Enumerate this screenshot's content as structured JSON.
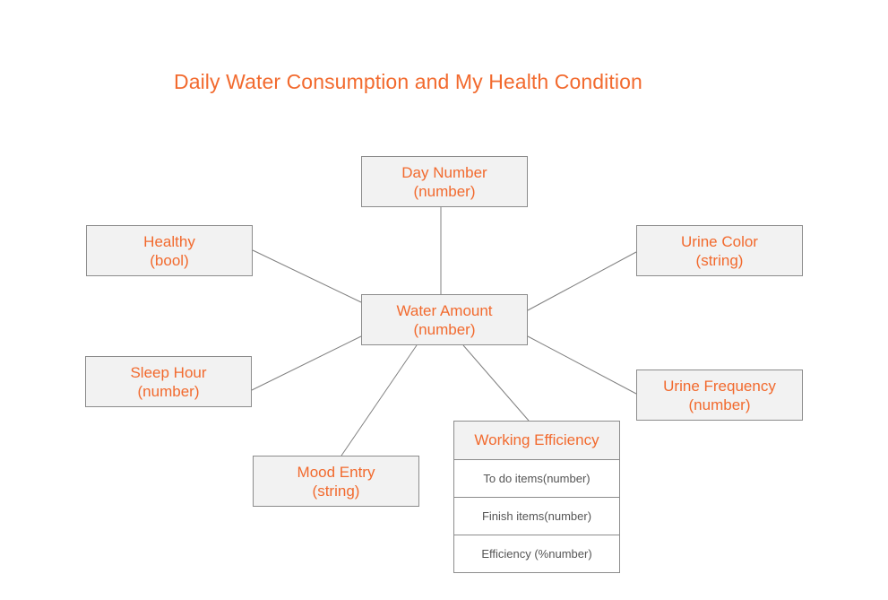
{
  "title": "Daily Water Consumption and My Health Condition",
  "center": {
    "name": "Water Amount",
    "type": "(number)"
  },
  "nodes": {
    "day": {
      "name": "Day Number",
      "type": "(number)"
    },
    "healthy": {
      "name": "Healthy",
      "type": "(bool)"
    },
    "sleep": {
      "name": "Sleep Hour",
      "type": "(number)"
    },
    "mood": {
      "name": "Mood Entry",
      "type": "(string)"
    },
    "color": {
      "name": "Urine Color",
      "type": "(string)"
    },
    "freq": {
      "name": "Urine Frequency",
      "type": "(number)"
    }
  },
  "efficiency": {
    "title": "Working Efficiency",
    "rows": [
      "To do items(number)",
      "Finish items(number)",
      "Efficiency (%number)"
    ]
  },
  "colors": {
    "text_accent": "#f26a2e",
    "box_fill": "#f2f2f2",
    "border": "#8c8c8c",
    "line": "#808080"
  }
}
